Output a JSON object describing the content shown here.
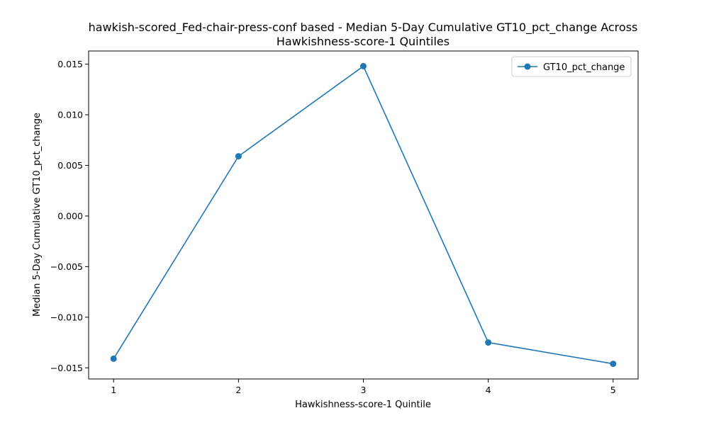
{
  "chart_data": {
    "type": "line",
    "title_lines": [
      "hawkish-scored_Fed-chair-press-conf based - Median 5-Day Cumulative GT10_pct_change Across",
      "Hawkishness-score-1 Quintiles"
    ],
    "xlabel": "Hawkishness-score-1 Quintile",
    "ylabel": "Median 5-Day Cumulative GT10_pct_change",
    "x": [
      1,
      2,
      3,
      4,
      5
    ],
    "x_tick_labels": [
      "1",
      "2",
      "3",
      "4",
      "5"
    ],
    "xlim": [
      0.8,
      5.2
    ],
    "y_ticks": [
      -0.015,
      -0.01,
      -0.005,
      0.0,
      0.005,
      0.01,
      0.015
    ],
    "y_tick_labels": [
      "−0.015",
      "−0.010",
      "−0.005",
      "0.000",
      "0.005",
      "0.010",
      "0.015"
    ],
    "ylim": [
      -0.0161,
      0.0163
    ],
    "grid": false,
    "legend_position": "upper-right",
    "series": [
      {
        "name": "GT10_pct_change",
        "color": "#1f77b4",
        "marker": "circle",
        "values": [
          -0.0141,
          0.0059,
          0.0148,
          -0.0125,
          -0.0146
        ]
      }
    ]
  }
}
